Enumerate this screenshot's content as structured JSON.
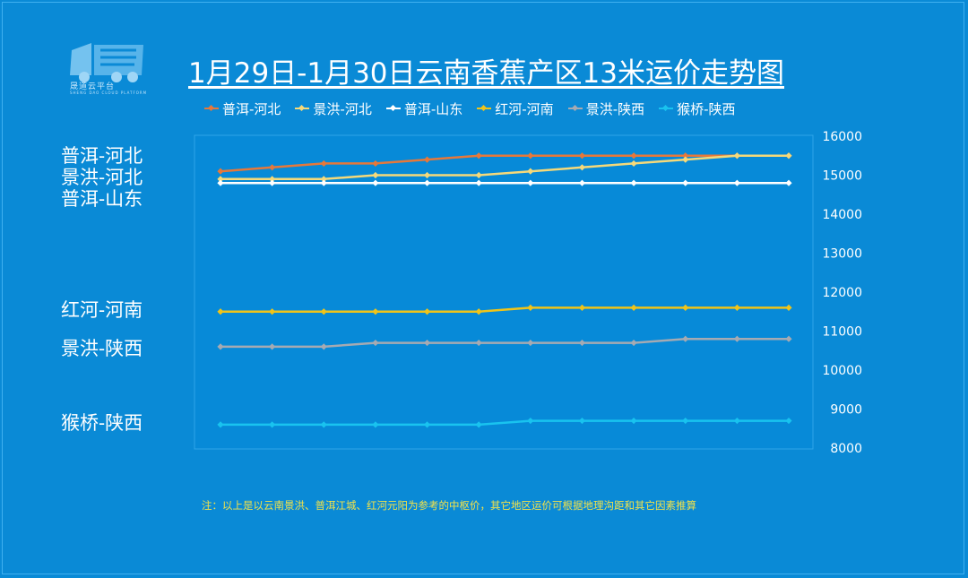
{
  "header": {
    "logo_name": "晟道云平台",
    "logo_subtitle": "SHENG DAO CLOUD PLATFORM",
    "title": "1月29日-1月30日云南香蕉产区13米运价走势图"
  },
  "side_labels": [
    "普洱-河北",
    "景洪-河北",
    "普洱-山东",
    "红河-河南",
    "景洪-陕西",
    "猴桥-陕西"
  ],
  "note": "注：以上是以云南景洪、普洱江城、红河元阳为参考的中枢价，其它地区运价可根据地理沟距和其它因素推算",
  "colors": {
    "background": "#0a8ad6",
    "plot_background": "#078ad8",
    "text": "#ffffff",
    "note": "#f2e24a"
  },
  "chart_data": {
    "type": "line",
    "title": "1月29日-1月30日云南香蕉产区13米运价走势图",
    "x": [
      1,
      2,
      3,
      4,
      5,
      6,
      7,
      8,
      9,
      10,
      11,
      12
    ],
    "ylim": [
      8000,
      16000
    ],
    "y_ticks": [
      "16000",
      "15000",
      "14000",
      "13000",
      "12000",
      "11000",
      "10000",
      "9000",
      "8000"
    ],
    "y_axis_position": "right",
    "grid": false,
    "legend_position": "top",
    "series": [
      {
        "name": "普洱-河北",
        "color": "#e6783a",
        "values": [
          15100,
          15200,
          15300,
          15300,
          15400,
          15500,
          15500,
          15500,
          15500,
          15500,
          15500,
          15500
        ]
      },
      {
        "name": "景洪-河北",
        "color": "#f5d97a",
        "values": [
          14900,
          14900,
          14900,
          15000,
          15000,
          15000,
          15100,
          15200,
          15300,
          15400,
          15500,
          15500
        ]
      },
      {
        "name": "普洱-山东",
        "color": "#ffffff",
        "values": [
          14800,
          14800,
          14800,
          14800,
          14800,
          14800,
          14800,
          14800,
          14800,
          14800,
          14800,
          14800
        ]
      },
      {
        "name": "红河-河南",
        "color": "#f0c419",
        "values": [
          11500,
          11500,
          11500,
          11500,
          11500,
          11500,
          11600,
          11600,
          11600,
          11600,
          11600,
          11600
        ]
      },
      {
        "name": "景洪-陕西",
        "color": "#a6aab2",
        "values": [
          10600,
          10600,
          10600,
          10700,
          10700,
          10700,
          10700,
          10700,
          10700,
          10800,
          10800,
          10800
        ]
      },
      {
        "name": "猴桥-陕西",
        "color": "#19c3ef",
        "values": [
          8600,
          8600,
          8600,
          8600,
          8600,
          8600,
          8700,
          8700,
          8700,
          8700,
          8700,
          8700
        ]
      }
    ]
  }
}
